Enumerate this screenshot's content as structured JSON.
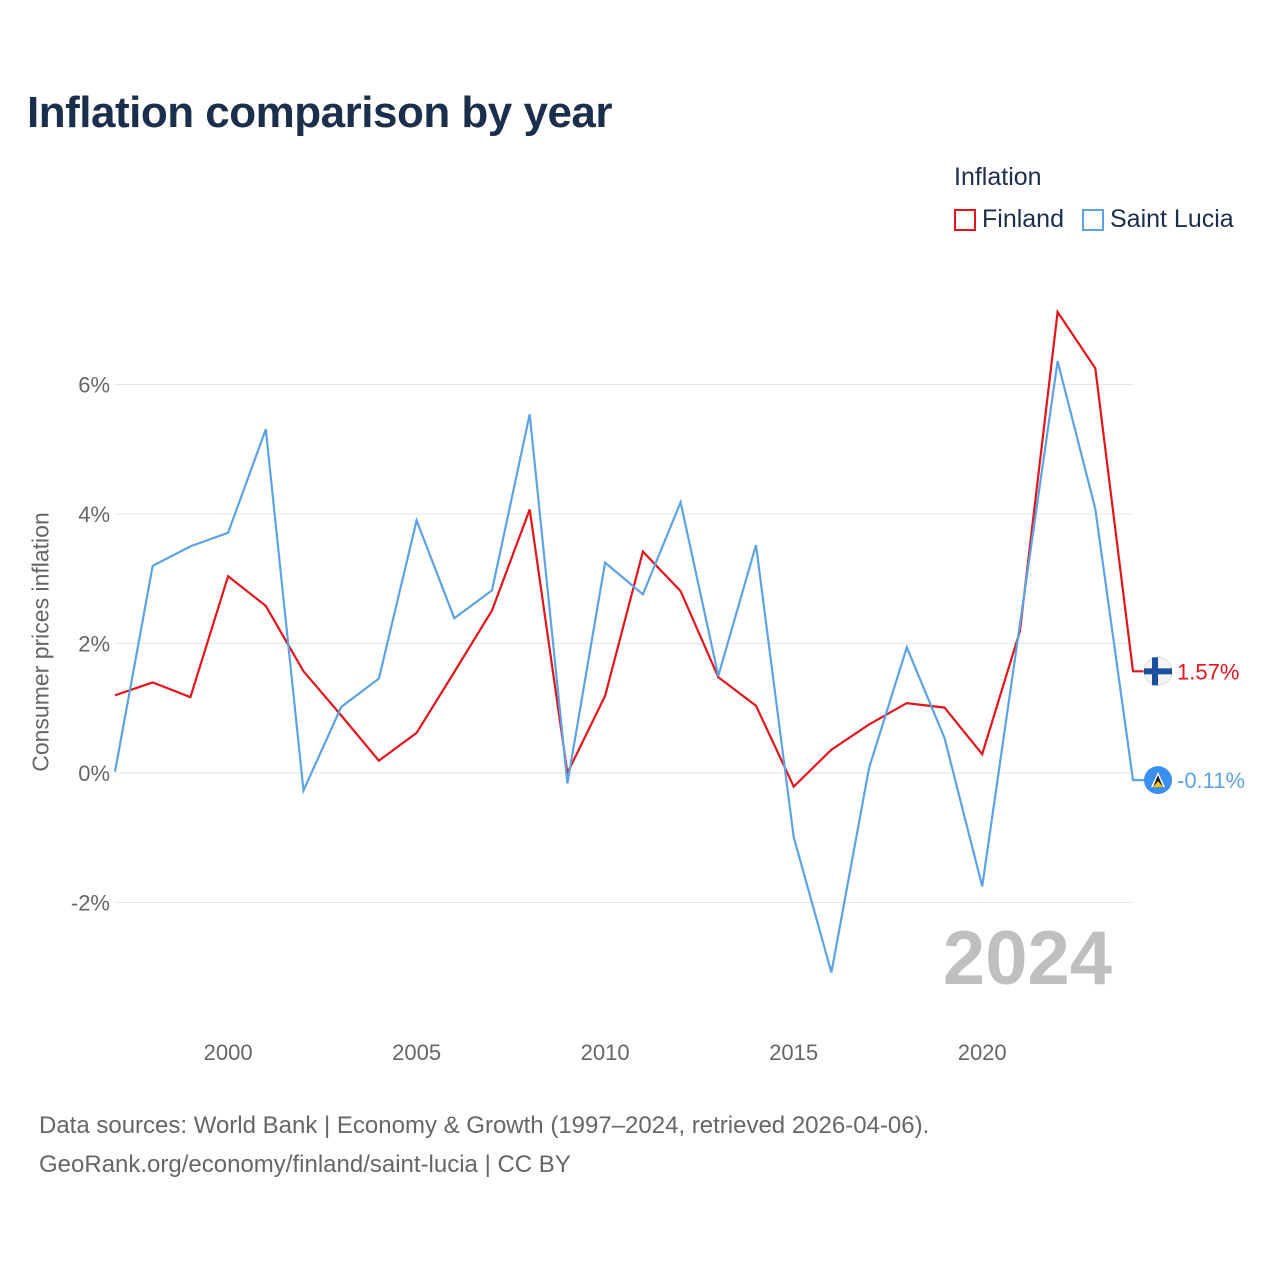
{
  "title": "Inflation comparison by year",
  "legend": {
    "title": "Inflation"
  },
  "footer": {
    "line1": "Data sources: World Bank | Economy & Growth (1997–2024, retrieved 2026-04-06).",
    "line2": "GeoRank.org/economy/finland/saint-lucia | CC BY"
  },
  "colors": {
    "finland": "#e4141b",
    "saint_lucia": "#5da3e4",
    "grid": "#e6e6e6",
    "axis_text": "#666666",
    "watermark": "#bfbfbf"
  },
  "chart_data": {
    "type": "line",
    "title": "Inflation comparison by year",
    "xlabel": "",
    "ylabel": "Consumer prices inflation",
    "ylim": [
      -3.6,
      7.6
    ],
    "xlim": [
      1997,
      2024
    ],
    "yticks": [
      -2,
      0,
      2,
      4,
      6
    ],
    "ytick_labels": [
      "-2%",
      "0%",
      "2%",
      "4%",
      "6%"
    ],
    "xticks": [
      2000,
      2005,
      2010,
      2015,
      2020
    ],
    "xtick_labels": [
      "2000",
      "2005",
      "2010",
      "2015",
      "2020"
    ],
    "watermark": "2024",
    "x": [
      1997,
      1998,
      1999,
      2000,
      2001,
      2002,
      2003,
      2004,
      2005,
      2006,
      2007,
      2008,
      2009,
      2010,
      2011,
      2012,
      2013,
      2014,
      2015,
      2016,
      2017,
      2018,
      2019,
      2020,
      2021,
      2022,
      2023,
      2024
    ],
    "series": [
      {
        "name": "Finland",
        "color": "#e4141b",
        "end_label": "1.57%",
        "values": [
          1.2,
          1.4,
          1.17,
          3.04,
          2.58,
          1.57,
          0.89,
          0.19,
          0.62,
          1.56,
          2.51,
          4.07,
          0.0,
          1.19,
          3.42,
          2.81,
          1.48,
          1.04,
          -0.21,
          0.36,
          0.75,
          1.08,
          1.01,
          0.29,
          2.19,
          7.12,
          6.25,
          1.57
        ]
      },
      {
        "name": "Saint Lucia",
        "color": "#5da3e4",
        "end_label": "-0.11%",
        "values": [
          0.02,
          3.2,
          3.5,
          3.71,
          5.31,
          -0.27,
          1.02,
          1.46,
          3.9,
          2.39,
          2.82,
          5.54,
          -0.16,
          3.25,
          2.76,
          4.18,
          1.5,
          3.52,
          -0.99,
          -3.08,
          0.08,
          1.94,
          0.54,
          -1.75,
          2.29,
          6.36,
          4.08,
          -0.11
        ]
      }
    ]
  }
}
